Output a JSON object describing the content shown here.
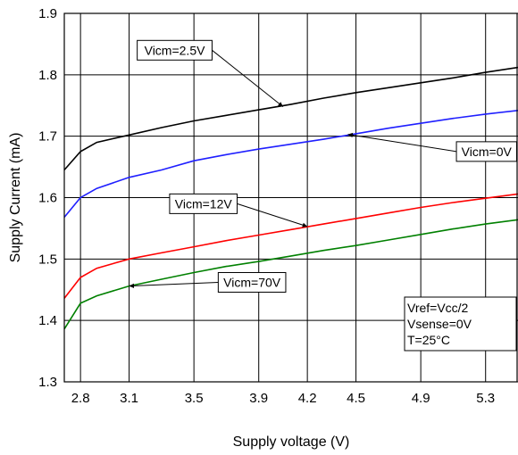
{
  "chart_data": {
    "type": "line",
    "xlabel": "Supply voltage (V)",
    "ylabel": "Supply Current (mA)",
    "xlim": [
      2.7,
      5.5
    ],
    "ylim": [
      1.3,
      1.9
    ],
    "x_ticks": [
      "2.8",
      "3.1",
      "3.5",
      "3.9",
      "4.2",
      "4.5",
      "4.9",
      "5.3"
    ],
    "y_ticks": [
      "1.3",
      "1.4",
      "1.5",
      "1.6",
      "1.7",
      "1.8",
      "1.9"
    ],
    "grid": true,
    "series": [
      {
        "name": "Vicm=2.5V",
        "color": "#000000",
        "x": [
          2.7,
          2.8,
          2.9,
          3.1,
          3.3,
          3.5,
          3.7,
          3.9,
          4.1,
          4.3,
          4.5,
          4.7,
          4.9,
          5.1,
          5.3,
          5.5
        ],
        "y": [
          1.645,
          1.675,
          1.69,
          1.702,
          1.714,
          1.725,
          1.734,
          1.743,
          1.752,
          1.762,
          1.771,
          1.779,
          1.787,
          1.795,
          1.804,
          1.812
        ]
      },
      {
        "name": "Vicm=0V",
        "color": "#1f1fff",
        "x": [
          2.7,
          2.8,
          2.9,
          3.1,
          3.3,
          3.5,
          3.7,
          3.9,
          4.1,
          4.3,
          4.5,
          4.7,
          4.9,
          5.1,
          5.3,
          5.5
        ],
        "y": [
          1.568,
          1.6,
          1.615,
          1.633,
          1.645,
          1.66,
          1.67,
          1.679,
          1.687,
          1.695,
          1.704,
          1.713,
          1.721,
          1.729,
          1.736,
          1.742
        ]
      },
      {
        "name": "Vicm=12V",
        "color": "#ff0000",
        "x": [
          2.7,
          2.8,
          2.9,
          3.1,
          3.3,
          3.5,
          3.7,
          3.9,
          4.1,
          4.3,
          4.5,
          4.7,
          4.9,
          5.1,
          5.3,
          5.5
        ],
        "y": [
          1.436,
          1.47,
          1.485,
          1.5,
          1.51,
          1.52,
          1.53,
          1.539,
          1.548,
          1.557,
          1.566,
          1.575,
          1.584,
          1.592,
          1.599,
          1.606
        ]
      },
      {
        "name": "Vicm=70V",
        "color": "#008000",
        "x": [
          2.7,
          2.8,
          2.9,
          3.1,
          3.3,
          3.5,
          3.7,
          3.9,
          4.1,
          4.3,
          4.5,
          4.7,
          4.9,
          5.1,
          5.3,
          5.5
        ],
        "y": [
          1.386,
          1.428,
          1.44,
          1.456,
          1.467,
          1.478,
          1.488,
          1.496,
          1.505,
          1.514,
          1.522,
          1.531,
          1.54,
          1.549,
          1.557,
          1.564
        ]
      }
    ],
    "annotations": [
      {
        "text": "Vicm=2.5V",
        "series": 0,
        "box_x": 3.15,
        "box_y": 1.84,
        "arrow_to_x": 4.05,
        "arrow_to_y": 1.748
      },
      {
        "text": "Vicm=0V",
        "series": 1,
        "box_x": 5.12,
        "box_y": 1.675,
        "arrow_to_x": 4.45,
        "arrow_to_y": 1.703
      },
      {
        "text": "Vicm=12V",
        "series": 2,
        "box_x": 3.35,
        "box_y": 1.59,
        "arrow_to_x": 4.2,
        "arrow_to_y": 1.553
      },
      {
        "text": "Vicm=70V",
        "series": 3,
        "box_x": 3.65,
        "box_y": 1.462,
        "arrow_to_x": 3.1,
        "arrow_to_y": 1.456
      }
    ],
    "conditions": [
      "Vref=Vcc/2",
      "Vsense=0V",
      "T=25°C"
    ]
  }
}
